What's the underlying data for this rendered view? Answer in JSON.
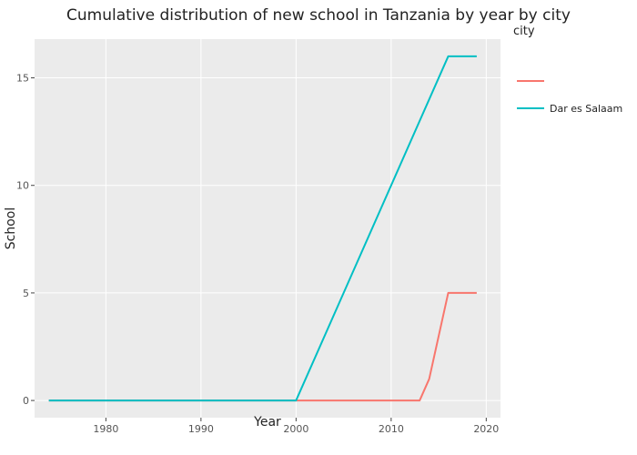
{
  "chart_data": {
    "type": "line",
    "title": "Cumulative distribution of new school in Tanzania by year by city",
    "xlabel": "Year",
    "ylabel": "School",
    "xlim": [
      1972.5,
      2021.5
    ],
    "ylim": [
      -0.8,
      16.8
    ],
    "x_ticks": [
      1980,
      1990,
      2000,
      2010,
      2020
    ],
    "y_ticks": [
      0,
      5,
      10,
      15
    ],
    "grid": true,
    "legend": {
      "title": "city",
      "position": "right"
    },
    "series": [
      {
        "name": "",
        "color": "#F8766D",
        "points": [
          [
            1974,
            0
          ],
          [
            2000,
            0
          ],
          [
            2013,
            0
          ],
          [
            2014,
            1
          ],
          [
            2016,
            5
          ],
          [
            2019,
            5
          ]
        ]
      },
      {
        "name": "Dar es Salaam",
        "color": "#00BFC4",
        "points": [
          [
            1974,
            0
          ],
          [
            2000,
            0
          ],
          [
            2016,
            16
          ],
          [
            2019,
            16
          ]
        ]
      }
    ]
  }
}
